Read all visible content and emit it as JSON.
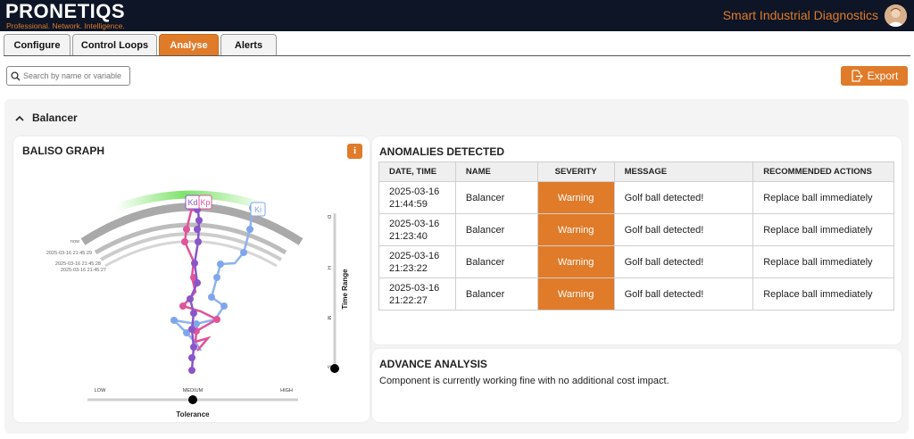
{
  "header": {
    "brand": "PRONETIQS",
    "tagline": "Professional. Network. Intelligence.",
    "app_title": "Smart Industrial Diagnostics"
  },
  "tabs": [
    {
      "label": "Configure",
      "active": false
    },
    {
      "label": "Control Loops",
      "active": false
    },
    {
      "label": "Analyse",
      "active": true
    },
    {
      "label": "Alerts",
      "active": false
    }
  ],
  "search": {
    "placeholder": "Search by name or variable"
  },
  "export": {
    "label": "Export"
  },
  "section": {
    "title": "Balancer",
    "expanded": true
  },
  "baliso": {
    "title": "BALISO GRAPH",
    "info_label": "i",
    "legend_labels": [
      "Kd",
      "Kp",
      "Ki"
    ],
    "timeline_labels": [
      "now",
      "2025-03-16 21:45:29",
      "2025-03-16 21:45:28",
      "2025-03-16 21:45:27"
    ],
    "time_axis": {
      "title": "Time Range",
      "ticks": [
        "D",
        "H",
        "M",
        "S"
      ],
      "value": "S"
    },
    "tolerance_axis": {
      "title": "Tolerance",
      "ticks": [
        "LOW",
        "MEDIUM",
        "HIGH"
      ],
      "value": "MEDIUM"
    }
  },
  "anomalies": {
    "title": "ANOMALIES DETECTED",
    "columns": [
      "DATE, TIME",
      "NAME",
      "SEVERITY",
      "MESSAGE",
      "RECOMMENDED ACTIONS"
    ],
    "rows": [
      {
        "date": "2025-03-16",
        "time": "21:44:59",
        "name": "Balancer",
        "severity": "Warning",
        "message": "Golf ball detected!",
        "action": "Replace ball immediately"
      },
      {
        "date": "2025-03-16",
        "time": "21:23:40",
        "name": "Balancer",
        "severity": "Warning",
        "message": "Golf ball detected!",
        "action": "Replace ball immediately"
      },
      {
        "date": "2025-03-16",
        "time": "21:23:22",
        "name": "Balancer",
        "severity": "Warning",
        "message": "Golf ball detected!",
        "action": "Replace ball immediately"
      },
      {
        "date": "2025-03-16",
        "time": "21:22:27",
        "name": "Balancer",
        "severity": "Warning",
        "message": "Golf ball detected!",
        "action": "Replace ball immediately"
      }
    ]
  },
  "advance": {
    "title": "ADVANCE ANALYSIS",
    "text": "Component is currently working fine with no additional cost impact."
  },
  "colors": {
    "accent": "#e07b2a",
    "header_bg": "#0d1526",
    "kd": "#8a55c9",
    "kp": "#e0549a",
    "ki": "#7fa6ec",
    "arc_green": "#6fe05a"
  }
}
